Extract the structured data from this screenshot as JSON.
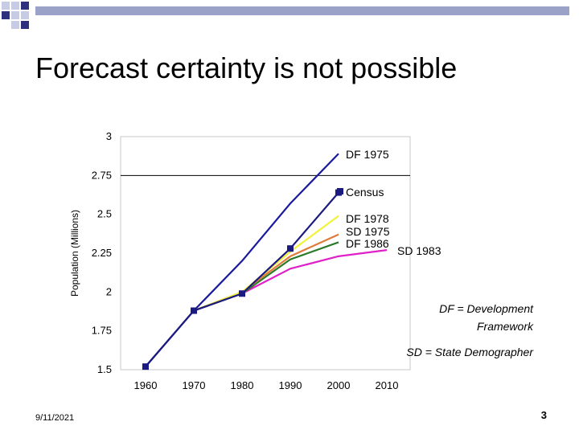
{
  "slide": {
    "title": "Forecast certainty is not possible",
    "date": "9/11/2021",
    "page_number": "3",
    "accent_color": "#9aa2c8",
    "corner_colors": [
      "#2d2f7f",
      "#c7cbe3"
    ]
  },
  "chart_data": {
    "type": "line",
    "title": "",
    "xlabel": "",
    "ylabel": "Population (Millions)",
    "categories": [
      1960,
      1970,
      1980,
      1990,
      2000,
      2010
    ],
    "ylim": [
      1.5,
      3
    ],
    "yticks": [
      1.5,
      1.75,
      2,
      2.25,
      2.5,
      2.75,
      3
    ],
    "ytick_labels": [
      "1.5",
      "1.75",
      "2",
      "2.25",
      "2.5",
      "2.75",
      "3"
    ],
    "xtick_labels": [
      "1960",
      "1970",
      "1980",
      "1990",
      "2000",
      "2010"
    ],
    "reference_line": 2.75,
    "series": [
      {
        "name": "DF 1975",
        "color": "#1a1a9e",
        "x": [
          1960,
          1970,
          1980,
          1990,
          2000
        ],
        "values": [
          1.52,
          1.88,
          2.2,
          2.57,
          2.89
        ]
      },
      {
        "name": "Census",
        "color": "#1a1a80",
        "markers": true,
        "x": [
          1960,
          1970,
          1980,
          1990,
          2000
        ],
        "values": [
          1.52,
          1.88,
          1.99,
          2.28,
          2.64
        ]
      },
      {
        "name": "DF 1978",
        "color": "#f2f23a",
        "x": [
          1970,
          1980,
          1990,
          2000
        ],
        "values": [
          1.88,
          2.0,
          2.26,
          2.49
        ]
      },
      {
        "name": "SD 1975",
        "color": "#e07a3a",
        "x": [
          1970,
          1980,
          1990,
          2000
        ],
        "values": [
          1.88,
          2.0,
          2.23,
          2.37
        ]
      },
      {
        "name": "DF 1986",
        "color": "#2a7a2a",
        "x": [
          1970,
          1980,
          1990,
          2000
        ],
        "values": [
          1.88,
          1.99,
          2.21,
          2.32
        ]
      },
      {
        "name": "SD 1983",
        "color": "#e020c8",
        "x": [
          1970,
          1980,
          1990,
          2000,
          2010
        ],
        "values": [
          1.88,
          1.99,
          2.15,
          2.23,
          2.27
        ]
      }
    ],
    "annotations": [
      "DF = Development Framework",
      "SD = State Demographer"
    ]
  }
}
